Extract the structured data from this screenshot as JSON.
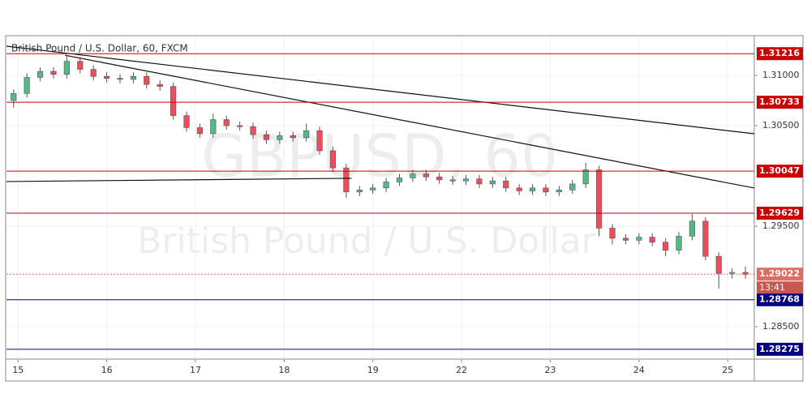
{
  "chart_data": {
    "type": "candlestick",
    "title": "British Pound / U.S. Dollar, 60, FXCM",
    "watermark": "GBPUSD, 60",
    "watermark_subtitle": "British Pound / U.S. Dollar",
    "up_color": "#53b987",
    "down_color": "#eb4d5c",
    "x": [
      -0.05,
      0.1,
      0.25,
      0.4,
      0.55,
      0.7,
      0.85,
      1,
      1.15,
      1.3,
      1.45,
      1.6,
      1.75,
      1.9,
      2.05,
      2.2,
      2.35,
      2.5,
      2.65,
      2.8,
      2.95,
      3.1,
      3.25,
      3.4,
      3.55,
      3.7,
      3.85,
      4,
      4.15,
      4.3,
      4.45,
      4.6,
      4.75,
      4.9,
      5.05,
      5.2,
      5.35,
      5.5,
      5.65,
      5.8,
      5.95,
      6.1,
      6.25,
      6.4,
      6.55,
      6.7,
      6.85,
      7,
      7.15,
      7.3,
      7.45,
      7.6,
      7.75,
      7.9,
      8.05,
      8.2
    ],
    "open": [
      1.3075,
      1.3082,
      1.3098,
      1.3104,
      1.3101,
      1.3114,
      1.3106,
      1.3099,
      1.3097,
      1.3096,
      1.3099,
      1.3091,
      1.3089,
      1.306,
      1.3048,
      1.3042,
      1.3056,
      1.305,
      1.3049,
      1.3041,
      1.3036,
      1.304,
      1.3038,
      1.3045,
      1.3025,
      1.3008,
      1.2984,
      1.2986,
      1.2988,
      1.2994,
      1.2998,
      1.3002,
      1.2999,
      1.2996,
      1.2995,
      1.2997,
      1.2992,
      1.2995,
      1.2988,
      1.2985,
      1.2988,
      1.2984,
      1.2986,
      1.2992,
      1.3006,
      1.2948,
      1.2938,
      1.2936,
      1.2939,
      1.2934,
      1.2926,
      1.294,
      1.2955,
      1.292,
      1.2903,
      1.2904
    ],
    "high": [
      1.3086,
      1.3102,
      1.3108,
      1.3108,
      1.3119,
      1.3118,
      1.311,
      1.3103,
      1.3101,
      1.3103,
      1.3103,
      1.3095,
      1.3093,
      1.3064,
      1.3052,
      1.3062,
      1.306,
      1.3054,
      1.3053,
      1.3045,
      1.3044,
      1.3044,
      1.3052,
      1.3049,
      1.3029,
      1.3012,
      1.299,
      1.2992,
      1.2998,
      1.3002,
      1.3006,
      1.3006,
      1.3003,
      1.3,
      1.3001,
      1.3001,
      1.2999,
      1.2999,
      1.2992,
      1.2992,
      1.2992,
      1.299,
      1.2996,
      1.3013,
      1.301,
      1.2952,
      1.2942,
      1.2943,
      1.2943,
      1.2938,
      1.2944,
      1.2962,
      1.2959,
      1.2924,
      1.2908,
      1.291
    ],
    "low": [
      1.3068,
      1.3078,
      1.3094,
      1.3097,
      1.3097,
      1.3102,
      1.3095,
      1.3093,
      1.3092,
      1.3092,
      1.3087,
      1.3085,
      1.3056,
      1.3044,
      1.3038,
      1.3038,
      1.3046,
      1.3045,
      1.3037,
      1.3032,
      1.3032,
      1.3034,
      1.3034,
      1.3021,
      1.3004,
      1.2978,
      1.298,
      1.2982,
      1.2984,
      1.299,
      1.2994,
      1.2995,
      1.2992,
      1.2991,
      1.2991,
      1.2988,
      1.2988,
      1.2984,
      1.2981,
      1.2981,
      1.298,
      1.298,
      1.2982,
      1.2988,
      1.294,
      1.2932,
      1.2932,
      1.2932,
      1.293,
      1.292,
      1.2922,
      1.2936,
      1.2916,
      1.2888,
      1.2898,
      1.2898
    ],
    "close": [
      1.3082,
      1.3098,
      1.3104,
      1.3101,
      1.3114,
      1.3106,
      1.3099,
      1.3097,
      1.3096,
      1.3099,
      1.3091,
      1.3089,
      1.306,
      1.3048,
      1.3042,
      1.3056,
      1.305,
      1.3049,
      1.3041,
      1.3036,
      1.304,
      1.3038,
      1.3045,
      1.3025,
      1.3008,
      1.2984,
      1.2986,
      1.2988,
      1.2994,
      1.2998,
      1.3002,
      1.2999,
      1.2996,
      1.2995,
      1.2997,
      1.2992,
      1.2995,
      1.2988,
      1.2985,
      1.2988,
      1.2984,
      1.2986,
      1.2992,
      1.3006,
      1.2948,
      1.2938,
      1.2936,
      1.2939,
      1.2934,
      1.2926,
      1.294,
      1.2955,
      1.292,
      1.2903,
      1.2904,
      1.2902
    ],
    "xlim": [
      -0.13,
      8.3
    ],
    "xticks": [
      {
        "value": 0,
        "label": "15"
      },
      {
        "value": 1,
        "label": "16"
      },
      {
        "value": 2,
        "label": "17"
      },
      {
        "value": 3,
        "label": "18"
      },
      {
        "value": 4,
        "label": "19"
      },
      {
        "value": 5,
        "label": "22"
      },
      {
        "value": 6,
        "label": "23"
      },
      {
        "value": 7,
        "label": "24"
      },
      {
        "value": 8,
        "label": "25"
      }
    ],
    "ylim": [
      1.28177,
      1.31387
    ],
    "yticks": [
      {
        "value": 1.31,
        "label": "1.31000"
      },
      {
        "value": 1.305,
        "label": "1.30500"
      },
      {
        "value": 1.295,
        "label": "1.29500"
      },
      {
        "value": 1.285,
        "label": "1.28500"
      }
    ],
    "levels": [
      {
        "value": 1.31216,
        "color": "#cc0000"
      },
      {
        "value": 1.30733,
        "color": "#cc0000"
      },
      {
        "value": 1.30047,
        "color": "#cc0000"
      },
      {
        "value": 1.29629,
        "color": "#cc0000"
      },
      {
        "value": 1.28768,
        "color": "#000080"
      },
      {
        "value": 1.28275,
        "color": "#000080"
      }
    ],
    "current_price": {
      "value": 1.29022,
      "countdown": "13:41",
      "color": "#e06c63"
    },
    "trend_lines": [
      {
        "x": [
          -0.13,
          8.3
        ],
        "y": [
          1.3129,
          1.30419
        ]
      },
      {
        "x": [
          0.53,
          8.3
        ],
        "y": [
          1.312,
          1.29879
        ]
      },
      {
        "x": [
          -0.13,
          3.76
        ],
        "y": [
          1.29944,
          1.29976
        ]
      }
    ]
  }
}
